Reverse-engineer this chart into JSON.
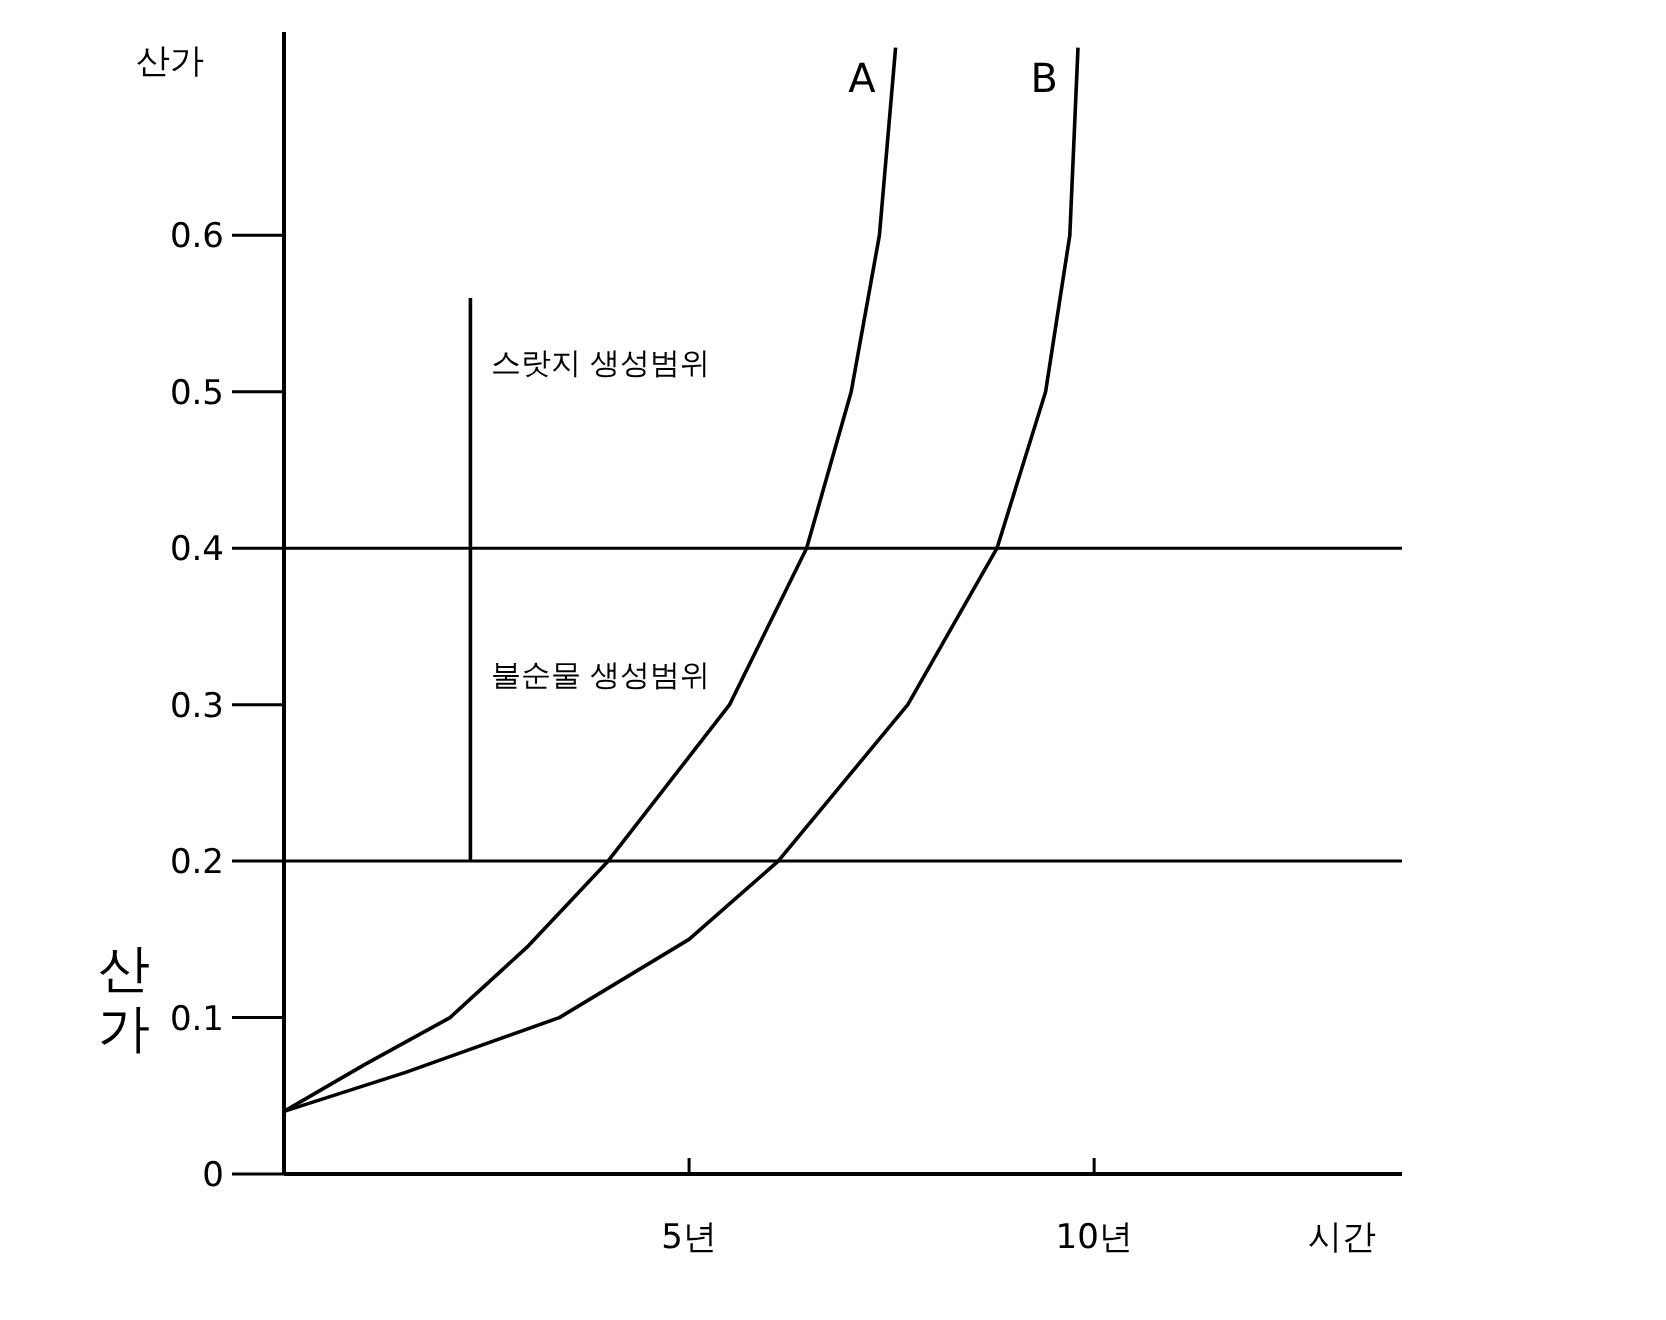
{
  "chart_data": {
    "type": "line",
    "ylabel": "산가",
    "xlabel": "시간",
    "xlim": [
      0,
      13.8
    ],
    "ylim": [
      0,
      0.73
    ],
    "xticks": [
      {
        "value": 5,
        "label": "5년"
      },
      {
        "value": 10,
        "label": "10년"
      }
    ],
    "yticks": [
      0,
      0.1,
      0.2,
      0.3,
      0.4,
      0.5,
      0.6
    ],
    "grid": false,
    "marker": "none",
    "line_style": "solid",
    "series": [
      {
        "name": "A",
        "color": "#000000",
        "x": [
          0,
          1,
          2.05,
          3,
          4.0,
          5.5,
          6.45,
          7.0,
          7.35,
          7.55
        ],
        "values": [
          0.04,
          0.07,
          0.1,
          0.145,
          0.2,
          0.3,
          0.4,
          0.5,
          0.6,
          0.72
        ]
      },
      {
        "name": "B",
        "color": "#000000",
        "x": [
          0,
          1.5,
          3.4,
          5,
          6.1,
          7.7,
          8.8,
          9.4,
          9.7,
          9.8
        ],
        "values": [
          0.04,
          0.065,
          0.1,
          0.15,
          0.2,
          0.3,
          0.4,
          0.5,
          0.6,
          0.72
        ]
      },
      {
        "color": "#000000",
        "x": [
          2.3,
          2.3
        ],
        "values": [
          0.2,
          0.56
        ]
      }
    ],
    "ref_lines": [
      {
        "axis": "y",
        "value": 0.2,
        "color": "#000000"
      },
      {
        "axis": "y",
        "value": 0.4,
        "color": "#000000"
      }
    ],
    "annotations": [
      "스랏지 생성범위",
      "불순물 생성범위",
      "산가"
    ]
  }
}
